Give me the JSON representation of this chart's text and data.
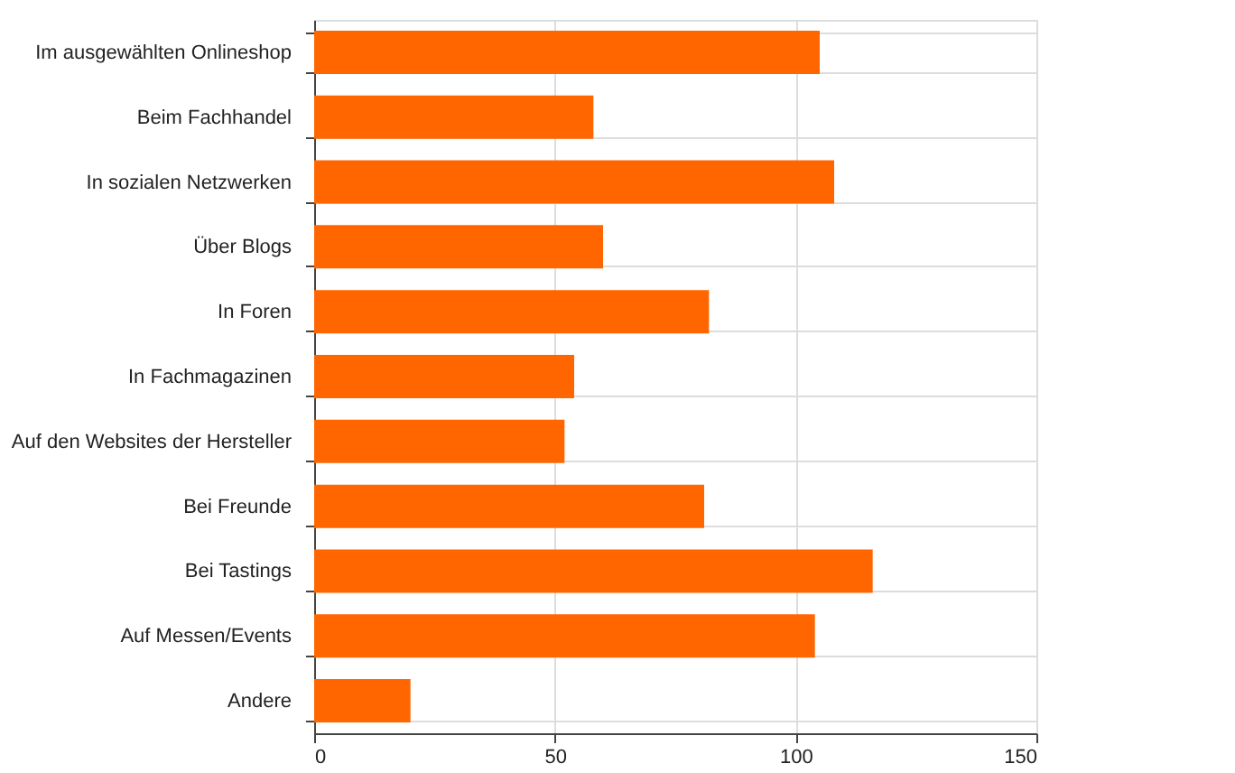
{
  "chart_data": {
    "type": "bar",
    "orientation": "horizontal",
    "categories": [
      "Im ausgewählten Onlineshop",
      "Beim Fachhandel",
      "In sozialen Netzwerken",
      "Über Blogs",
      "In Foren",
      "In Fachmagazinen",
      "Auf den Websites der Hersteller",
      "Bei Freunde",
      "Bei Tastings",
      "Auf Messen/Events",
      "Andere"
    ],
    "values": [
      105,
      58,
      108,
      60,
      82,
      54,
      52,
      81,
      116,
      104,
      20
    ],
    "color": "#ff6600",
    "xlim": [
      0,
      150
    ],
    "xticks": [
      0,
      50,
      100,
      150
    ],
    "grid": true
  }
}
